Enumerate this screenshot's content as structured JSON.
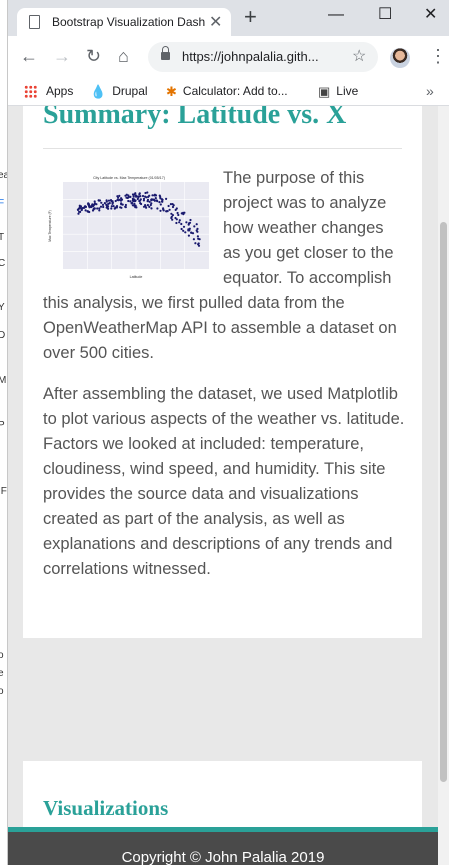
{
  "browser": {
    "tab_title": "Bootstrap Visualization Dashboard",
    "tab_close": "✕",
    "new_tab": "+",
    "window_controls": {
      "minimize": "—",
      "maximize": "☐",
      "close": "✕"
    },
    "nav": {
      "back": "←",
      "forward": "→",
      "reload": "↻",
      "home": "⌂"
    },
    "url": "https://johnpalalia.gith...",
    "star": "☆",
    "menu": "⋮",
    "bookmarks": [
      {
        "label": "Apps",
        "icon": "apps-grid-icon"
      },
      {
        "label": "Drupal",
        "icon": "drupal-icon"
      },
      {
        "label": "Calculator: Add to...",
        "icon": "calculator-icon"
      },
      {
        "label": "Live",
        "icon": "live-icon"
      }
    ],
    "bookmarks_more": "»"
  },
  "page": {
    "summary_heading": "Summary: Latitude vs. X",
    "paragraphs": [
      "The purpose of this project was to analyze how weather changes as you get closer to the equator. To accomplish this analysis, we first pulled data from the OpenWeatherMap API to assemble a dataset on over 500 cities.",
      "After assembling the dataset, we used Matplotlib to plot various aspects of the weather vs. latitude. Factors we looked at included: temperature, cloudiness, wind speed, and humidity. This site provides the source data and visualizations created as part of the analysis, as well as explanations and descriptions of any trends and correlations witnessed."
    ],
    "thumbnail": {
      "title": "City Latitude vs. Max Temperature (01/05/17)",
      "xlabel": "Latitude",
      "ylabel": "Max Temperature (F)",
      "point_color": "#1a1a6e"
    },
    "visualizations_heading": "Visualizations",
    "footer": "Copyright © John Palalia 2019"
  },
  "colors": {
    "accent": "#2aa198",
    "footer_bg": "#4a4a4a",
    "text": "#555555"
  }
}
